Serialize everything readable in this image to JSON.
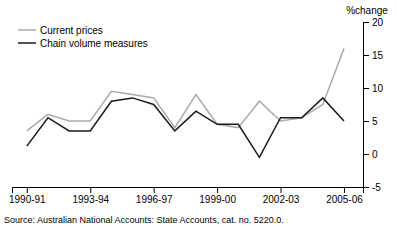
{
  "chart_data": {
    "type": "line",
    "ylabel": "%change",
    "annotations": [
      "Source: Australian National Accounts: State Accounts, cat. no. 5220.0."
    ],
    "x": [
      1990.5,
      1991.5,
      1992.5,
      1993.5,
      1994.5,
      1995.5,
      1996.5,
      1997.5,
      1998.5,
      1999.5,
      2000.5,
      2001.5,
      2002.5,
      2003.5,
      2004.5,
      2005.5
    ],
    "series": [
      {
        "name": "Current prices",
        "color": "#aaaaaa",
        "values": [
          3.5,
          6.0,
          5.0,
          5.0,
          9.5,
          9.0,
          8.5,
          4.0,
          9.0,
          4.5,
          4.0,
          8.0,
          5.0,
          5.5,
          7.5,
          16.0
        ]
      },
      {
        "name": "Chain volume measures",
        "color": "#1a1a1a",
        "values": [
          1.2,
          5.5,
          3.5,
          3.5,
          8.0,
          8.5,
          7.5,
          3.5,
          6.5,
          4.5,
          4.5,
          -0.5,
          5.5,
          5.5,
          8.5,
          5.0
        ]
      }
    ],
    "xlim": [
      1989.8,
      2006.4
    ],
    "xticks": [
      {
        "value": 1990.5,
        "label": "1990-91"
      },
      {
        "value": 1993.5,
        "label": "1993-94"
      },
      {
        "value": 1996.5,
        "label": "1996-97"
      },
      {
        "value": 1999.5,
        "label": "1999-00"
      },
      {
        "value": 2002.5,
        "label": "2002-03"
      },
      {
        "value": 2005.5,
        "label": "2005-06"
      }
    ],
    "ylim": [
      -5,
      20
    ],
    "yticks": [
      -5,
      0,
      5,
      10,
      15,
      20
    ],
    "grid": false,
    "legend": "top-left"
  }
}
